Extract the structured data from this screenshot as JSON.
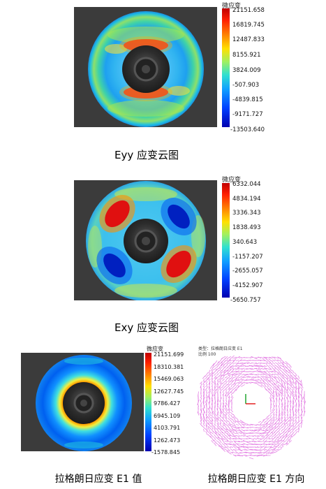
{
  "figures": [
    {
      "id": "eyy",
      "colorbar_title": "微应变",
      "ticks": [
        "21151.658",
        "16819.745",
        "12487.833",
        "8155.921",
        "3824.009",
        "-507.903",
        "-4839.815",
        "-9171.727",
        "-13503.640"
      ],
      "caption": "Eyy 应变云图"
    },
    {
      "id": "exy",
      "colorbar_title": "微应变",
      "ticks": [
        "6332.044",
        "4834.194",
        "3336.343",
        "1838.493",
        "340.643",
        "-1157.207",
        "-2655.057",
        "-4152.907",
        "-5650.757"
      ],
      "caption": "Exy 应变云图"
    },
    {
      "id": "e1",
      "colorbar_title": "微应变",
      "ticks": [
        "21151.699",
        "18310.381",
        "15469.063",
        "12627.745",
        "9786.427",
        "6945.109",
        "4103.791",
        "1262.473",
        "-1578.845"
      ],
      "caption": "拉格朗日应变 E1 值"
    },
    {
      "id": "e1dir",
      "header": "类型：拉格朗日应变 E1",
      "subheader": "比例 100",
      "caption": "拉格朗日应变 E1 方向"
    }
  ],
  "colors": {
    "jet_top": "#d00000",
    "jet_bottom": "#0000c0",
    "vector_color": "#e070e0",
    "background_dark": "#3c3c3c"
  }
}
